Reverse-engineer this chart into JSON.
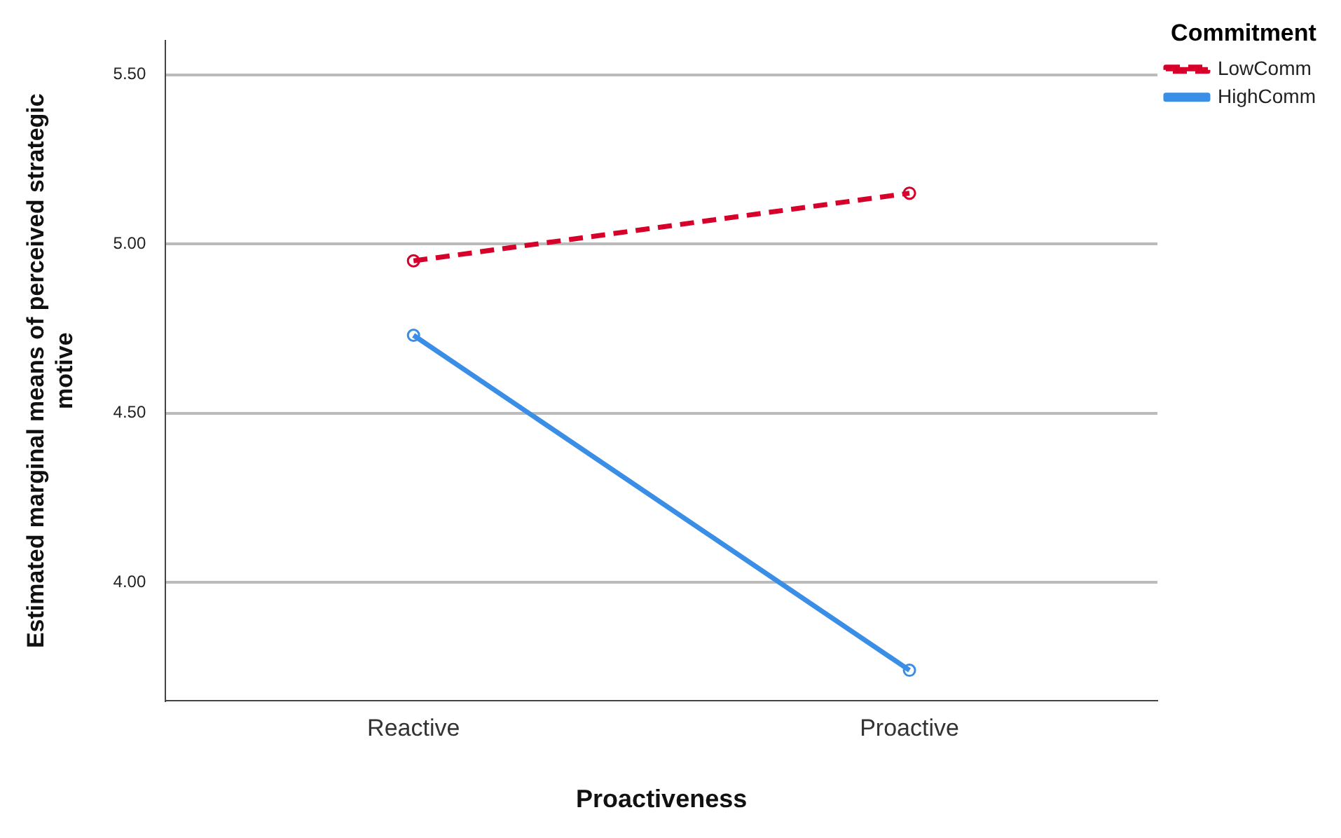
{
  "chart_data": {
    "type": "line",
    "xlabel": "Proactiveness",
    "ylabel": "Estimated marginal means of perceived strategic motive",
    "legend_title": "Commitment",
    "categories": [
      "Reactive",
      "Proactive"
    ],
    "series": [
      {
        "name": "LowComm",
        "color": "#d7002b",
        "values": [
          4.95,
          5.15
        ],
        "line_style": "dashed"
      },
      {
        "name": "HighComm",
        "color": "#3a8ee6",
        "values": [
          4.73,
          3.74
        ],
        "line_style": "solid"
      }
    ],
    "ylim": [
      3.65,
      5.6
    ],
    "yticks": [
      {
        "value": 4.0,
        "label": "4.00"
      },
      {
        "value": 4.5,
        "label": "4.50"
      },
      {
        "value": 5.0,
        "label": "5.00"
      },
      {
        "value": 5.5,
        "label": "5.50"
      }
    ],
    "grid": "y",
    "legend": "top right",
    "marker": "circle"
  }
}
